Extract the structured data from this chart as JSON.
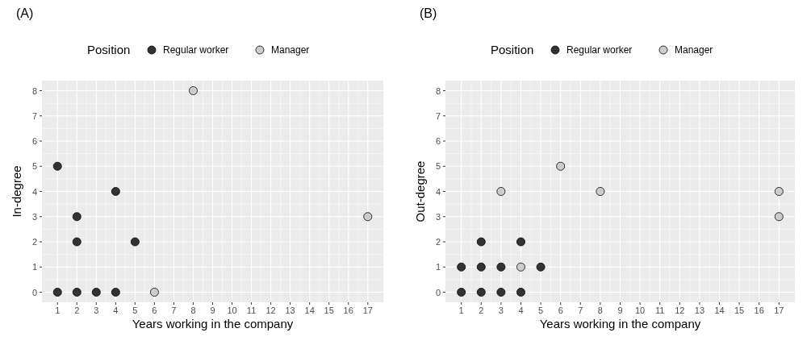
{
  "chart_data": [
    {
      "type": "scatter",
      "title": "(A)",
      "xlabel": "Years working in the company",
      "ylabel": "In-degree",
      "legend_title": "Position",
      "legend": "top",
      "grid": true,
      "marker": "circle",
      "xlim": [
        0.2,
        17.8
      ],
      "xticks": [
        1,
        2,
        3,
        4,
        5,
        6,
        7,
        8,
        9,
        10,
        11,
        12,
        13,
        14,
        15,
        16,
        17
      ],
      "ylim": [
        -0.4,
        8.4
      ],
      "yticks": [
        0,
        1,
        2,
        3,
        4,
        5,
        6,
        7,
        8
      ],
      "series": [
        {
          "name": "Regular worker",
          "color": "#333333",
          "x": [
            1,
            1,
            2,
            2,
            2,
            3,
            4,
            4,
            5
          ],
          "values": [
            5,
            0,
            3,
            2,
            0,
            0,
            4,
            0,
            2
          ]
        },
        {
          "name": "Manager",
          "color": "#cccccc",
          "x": [
            6,
            8,
            17
          ],
          "values": [
            0,
            8,
            3
          ]
        }
      ]
    },
    {
      "type": "scatter",
      "title": "(B)",
      "xlabel": "Years working in the company",
      "ylabel": "Out-degree",
      "legend_title": "Position",
      "legend": "top",
      "grid": true,
      "marker": "circle",
      "xlim": [
        0.2,
        17.8
      ],
      "xticks": [
        1,
        2,
        3,
        4,
        5,
        6,
        7,
        8,
        9,
        10,
        11,
        12,
        13,
        14,
        15,
        16,
        17
      ],
      "ylim": [
        -0.4,
        8.4
      ],
      "yticks": [
        0,
        1,
        2,
        3,
        4,
        5,
        6,
        7,
        8
      ],
      "series": [
        {
          "name": "Regular worker",
          "color": "#333333",
          "x": [
            1,
            1,
            2,
            2,
            2,
            3,
            3,
            4,
            4,
            5
          ],
          "values": [
            1,
            0,
            2,
            1,
            0,
            1,
            0,
            2,
            0,
            1
          ]
        },
        {
          "name": "Manager",
          "color": "#cccccc",
          "x": [
            3,
            4,
            6,
            8,
            17,
            17
          ],
          "values": [
            4,
            1,
            5,
            4,
            4,
            3
          ]
        }
      ]
    }
  ]
}
